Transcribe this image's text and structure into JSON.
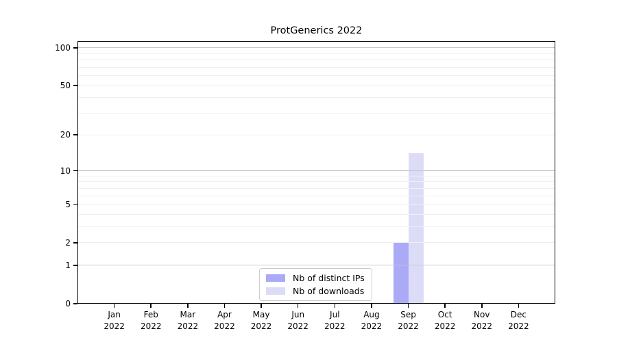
{
  "chart_data": {
    "type": "bar",
    "title": "ProtGenerics 2022",
    "scale": "log1p",
    "categories": [
      "Jan\n2022",
      "Feb\n2022",
      "Mar\n2022",
      "Apr\n2022",
      "May\n2022",
      "Jun\n2022",
      "Jul\n2022",
      "Aug\n2022",
      "Sep\n2022",
      "Oct\n2022",
      "Nov\n2022",
      "Dec\n2022"
    ],
    "series": [
      {
        "name": "Nb of distinct IPs",
        "color": "#aaaaf6",
        "values": [
          0,
          0,
          0,
          0,
          0,
          0,
          0,
          0,
          2,
          0,
          0,
          0
        ]
      },
      {
        "name": "Nb of downloads",
        "color": "#dcdcf8",
        "values": [
          0,
          0,
          0,
          0,
          0,
          0,
          0,
          0,
          14,
          0,
          0,
          0
        ]
      }
    ],
    "xlabel": "",
    "ylabel": "",
    "yticks": [
      0,
      1,
      2,
      5,
      10,
      20,
      50,
      100
    ],
    "ylim": [
      0,
      113
    ],
    "gridlines": {
      "major": [
        1,
        10,
        100
      ],
      "minor": [
        2,
        3,
        4,
        5,
        6,
        7,
        8,
        9,
        20,
        30,
        40,
        50,
        60,
        70,
        80,
        90
      ]
    },
    "legend": {
      "position": "lower-center"
    },
    "colors": {
      "major_grid": "#c9c9c9",
      "minor_grid": "#f0f0f0",
      "spine": "#000000",
      "background": "#ffffff"
    }
  }
}
